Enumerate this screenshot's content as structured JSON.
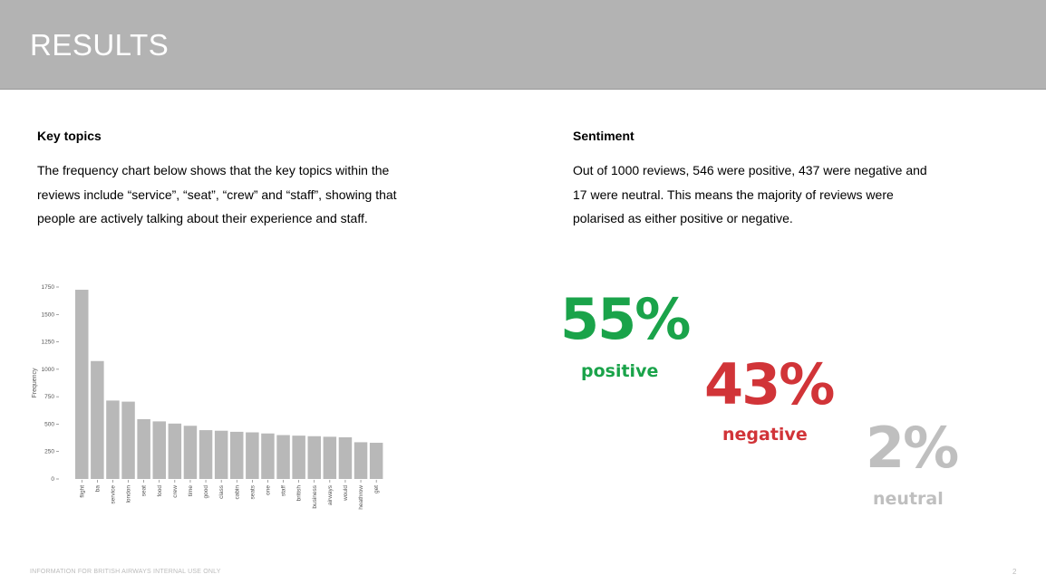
{
  "header": {
    "title": "RESULTS"
  },
  "key_topics": {
    "heading": "Key topics",
    "lines": [
      "The frequency chart below shows that the key topics within the",
      "reviews include “service”, “seat”, “crew” and “staff”, showing that",
      "people are actively talking about their experience and staff."
    ]
  },
  "sentiment": {
    "heading": "Sentiment",
    "lines": [
      "Out of 1000 reviews, 546 were positive, 437 were negative and",
      "17 were neutral. This means the majority of reviews were",
      "polarised as either positive or negative."
    ],
    "stats": [
      {
        "percent": "55%",
        "label": "positive",
        "color": "#1aa34a"
      },
      {
        "percent": "43%",
        "label": "negative",
        "color": "#d13438"
      },
      {
        "percent": "2%",
        "label": "neutral",
        "color": "#bfbfbf"
      }
    ]
  },
  "chart_data": {
    "type": "bar",
    "categories": [
      "flight",
      "ba",
      "service",
      "london",
      "seat",
      "food",
      "crew",
      "time",
      "good",
      "class",
      "cabin",
      "seats",
      "one",
      "staff",
      "british",
      "business",
      "airways",
      "would",
      "heathrow",
      "get"
    ],
    "values": [
      1725,
      1075,
      715,
      705,
      545,
      525,
      505,
      485,
      445,
      440,
      430,
      425,
      415,
      400,
      395,
      390,
      385,
      380,
      335,
      330
    ],
    "xlabel": "",
    "ylabel": "Frequency",
    "ylim": [
      0,
      1750
    ],
    "yticks": [
      0,
      250,
      500,
      750,
      1000,
      1250,
      1500,
      1750
    ],
    "bar_color": "#b8b8b8",
    "grid": false
  },
  "footer": {
    "note": "INFORMATION FOR BRITISH AIRWAYS  INTERNAL USE ONLY",
    "page": "2"
  }
}
